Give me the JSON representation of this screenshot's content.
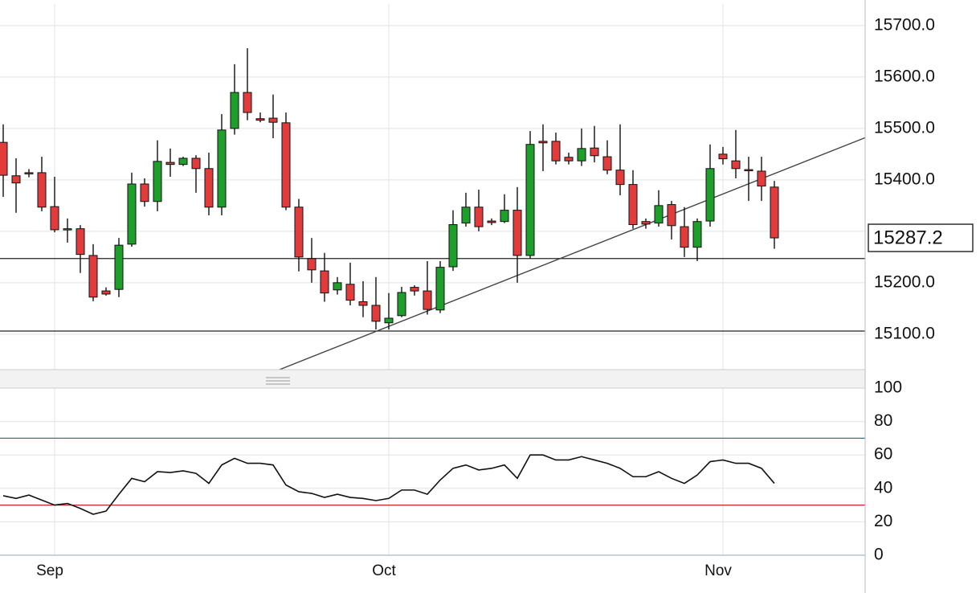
{
  "chart_data": [
    {
      "type": "candlestick",
      "categories": [
        null,
        null,
        null,
        null,
        "Sep",
        null,
        null,
        null,
        null,
        null,
        null,
        null,
        null,
        null,
        null,
        null,
        null,
        null,
        null,
        null,
        null,
        null,
        null,
        null,
        null,
        null,
        null,
        null,
        null,
        null,
        "Oct",
        null,
        null,
        null,
        null,
        null,
        null,
        null,
        null,
        null,
        null,
        null,
        null,
        null,
        null,
        null,
        null,
        null,
        null,
        null,
        null,
        null,
        null,
        null,
        null,
        null,
        "Nov",
        null,
        null,
        null,
        null
      ],
      "open": [
        15473,
        15408,
        15414,
        15414,
        15348,
        15305,
        15305,
        15253,
        15184,
        15187,
        15275,
        15392,
        15358,
        15434,
        15430,
        15442,
        15422,
        15347,
        15500,
        15570,
        15519,
        15520,
        15511,
        15347,
        15247,
        15223,
        15186,
        15197,
        15163,
        15156,
        15122,
        15136,
        15191,
        15184,
        15147,
        15231,
        15316,
        15347,
        15320,
        15319,
        15341,
        15253,
        15475,
        15475,
        15444,
        15437,
        15462,
        15445,
        15419,
        15391,
        15319,
        15316,
        15352,
        15309,
        15269,
        15320,
        15450,
        15437,
        15420,
        15417,
        15386
      ],
      "high": [
        15508,
        15442,
        15421,
        15445,
        15406,
        15325,
        15312,
        15275,
        15191,
        15287,
        15414,
        15403,
        15477,
        15461,
        15445,
        15448,
        15453,
        15528,
        15625,
        15656,
        15531,
        15566,
        15531,
        15363,
        15287,
        15258,
        15211,
        15239,
        15203,
        15211,
        15180,
        15192,
        15195,
        15242,
        15242,
        15341,
        15375,
        15381,
        15325,
        15372,
        15386,
        15495,
        15508,
        15492,
        15453,
        15500,
        15505,
        15477,
        15508,
        15419,
        15325,
        15380,
        15359,
        15347,
        15325,
        15469,
        15464,
        15497,
        15445,
        15445,
        15398
      ],
      "low": [
        15367,
        15336,
        15405,
        15339,
        15298,
        15278,
        15219,
        15164,
        15175,
        15172,
        15270,
        15348,
        15339,
        15406,
        15427,
        15375,
        15331,
        15331,
        15488,
        15516,
        15512,
        15481,
        15341,
        15222,
        15200,
        15163,
        15177,
        15156,
        15133,
        15109,
        15109,
        15133,
        15175,
        15138,
        15141,
        15223,
        15309,
        15300,
        15312,
        15316,
        15200,
        15247,
        15417,
        15430,
        15430,
        15427,
        15434,
        15411,
        15370,
        15305,
        15305,
        15309,
        15284,
        15250,
        15242,
        15309,
        15430,
        15403,
        15359,
        15359,
        15266
      ],
      "close": [
        15409,
        15394,
        15412,
        15347,
        15303,
        15303,
        15255,
        15172,
        15178,
        15273,
        15392,
        15358,
        15436,
        15430,
        15442,
        15422,
        15347,
        15497,
        15570,
        15531,
        15516,
        15512,
        15347,
        15250,
        15225,
        15180,
        15200,
        15166,
        15156,
        15125,
        15131,
        15181,
        15184,
        15148,
        15230,
        15313,
        15347,
        15309,
        15317,
        15341,
        15253,
        15469,
        15472,
        15437,
        15437,
        15461,
        15447,
        15419,
        15391,
        15313,
        15314,
        15350,
        15311,
        15269,
        15319,
        15422,
        15441,
        15422,
        15419,
        15388,
        15287.2
      ],
      "up_color": "#1e9e2a",
      "down_color": "#e23b3b",
      "ylim": [
        15031,
        15742
      ],
      "yticks": [
        {
          "value": 15100,
          "label": "15100.0"
        },
        {
          "value": 15200,
          "label": "15200.0"
        },
        {
          "value": 15300,
          "label": "15300.0"
        },
        {
          "value": 15400,
          "label": "15400.0"
        },
        {
          "value": 15500,
          "label": "15500.0"
        },
        {
          "value": 15600,
          "label": "15600.0"
        },
        {
          "value": 15700,
          "label": "15700.0"
        }
      ],
      "last_price": 15287.2,
      "reference_lines": [
        15247,
        15106
      ],
      "trend_line": {
        "x": [
          21.5,
          67.06
        ],
        "y": [
          15031,
          15482
        ]
      },
      "grid": true
    },
    {
      "type": "line",
      "values": [
        35.6,
        34,
        36,
        33,
        30,
        31,
        28,
        24.5,
        26.4,
        36.5,
        46,
        44,
        50,
        49.5,
        50.5,
        49,
        43,
        54,
        58,
        55,
        55,
        54,
        42,
        38,
        37,
        34.6,
        36.5,
        34.6,
        34,
        32.7,
        34,
        39,
        39,
        36.5,
        45,
        52,
        54,
        51,
        52,
        54,
        46,
        60,
        60,
        57,
        57,
        59,
        57,
        55,
        52,
        47,
        47,
        50,
        46,
        43,
        48,
        56,
        57,
        55,
        55,
        52,
        43
      ],
      "color": "#111111",
      "ylim": [
        0,
        100
      ],
      "yticks": [
        0,
        20,
        40,
        60,
        80,
        100
      ],
      "reference_lines": [
        70,
        30
      ],
      "reference_colors": [
        "#2b7c8c",
        "#c0282d"
      ],
      "grid": true
    }
  ]
}
